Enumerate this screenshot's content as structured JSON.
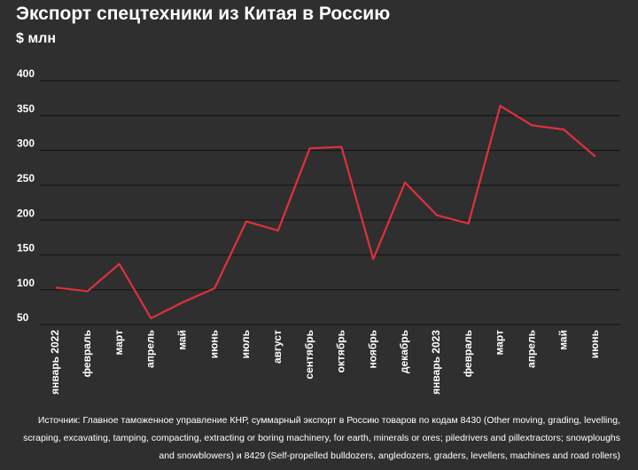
{
  "chart_data": {
    "type": "line",
    "title": "Экспорт спецтехники из Китая в Россию",
    "subtitle": "$ млн",
    "categories": [
      "январь 2022",
      "февраль",
      "март",
      "апрель",
      "май",
      "июнь",
      "июль",
      "август",
      "сентябрь",
      "октябрь",
      "ноябрь",
      "декабрь",
      "январь 2023",
      "февраль",
      "март",
      "апрель",
      "май",
      "июнь"
    ],
    "series": [
      {
        "color": "#e0303d",
        "values": [
          103,
          98,
          137,
          59,
          82,
          102,
          198,
          185,
          303,
          305,
          144,
          254,
          207,
          195,
          364,
          336,
          330,
          291
        ]
      }
    ],
    "ylim": [
      50,
      400
    ],
    "yticks": [
      50,
      100,
      150,
      200,
      250,
      300,
      350,
      400
    ],
    "grid": true,
    "source": "Источник: Главное таможенное управление КНР, суммарный экспорт в Россию товаров по кодам 8430 (Other moving, grading, levelling, scraping, excavating, tamping, compacting, extracting or boring machinery, for earth, minerals or ores; piledrivers and pillextractors; snowploughs and snowblowers) и 8429 (Self-propelled bulldozers, angledozers, graders, levellers, machines and road rollers)"
  }
}
